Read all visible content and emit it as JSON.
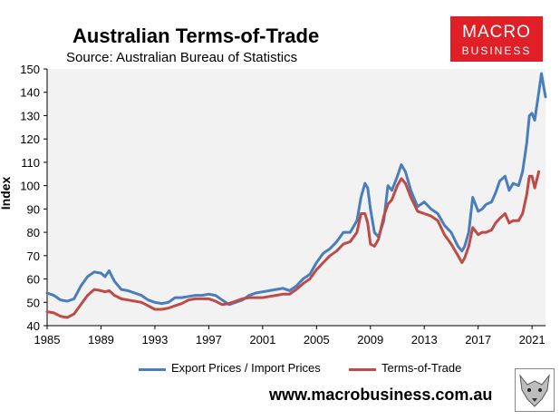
{
  "header": {
    "title": "Australian Terms-of-Trade",
    "subtitle": "Source: Australian Bureau of Statistics"
  },
  "logo": {
    "line1": "MACRO",
    "line2": "BUSINESS"
  },
  "footer": {
    "website": "www.macrobusiness.com.au"
  },
  "colors": {
    "export_import": "#4a7ebb",
    "terms_of_trade": "#be4b48",
    "plot_bg": "#f2f2f2",
    "logo_bg": "#e01f26"
  },
  "chart_data": {
    "type": "line",
    "ylabel": "Index",
    "xlabel": "",
    "xlim": [
      1985,
      2022
    ],
    "ylim": [
      40,
      150
    ],
    "yticks": [
      40,
      50,
      60,
      70,
      80,
      90,
      100,
      110,
      120,
      130,
      140,
      150
    ],
    "xticks": [
      1985,
      1989,
      1993,
      1997,
      2001,
      2005,
      2009,
      2013,
      2017,
      2021
    ],
    "grid": false,
    "legend": "bottom",
    "series": [
      {
        "name": "Export Prices / Import Prices",
        "color": "#4a7ebb",
        "points": [
          [
            1985,
            54
          ],
          [
            1985.5,
            53
          ],
          [
            1986,
            51
          ],
          [
            1986.5,
            50.5
          ],
          [
            1987,
            51.5
          ],
          [
            1987.5,
            57
          ],
          [
            1988,
            61
          ],
          [
            1988.5,
            63
          ],
          [
            1989,
            62.5
          ],
          [
            1989.3,
            61
          ],
          [
            1989.6,
            63.5
          ],
          [
            1990,
            59
          ],
          [
            1990.5,
            55.5
          ],
          [
            1991,
            55
          ],
          [
            1991.5,
            54
          ],
          [
            1992,
            53
          ],
          [
            1992.5,
            51
          ],
          [
            1993,
            50
          ],
          [
            1993.5,
            49.5
          ],
          [
            1994,
            50
          ],
          [
            1994.5,
            52
          ],
          [
            1995,
            52
          ],
          [
            1995.5,
            52.5
          ],
          [
            1996,
            53
          ],
          [
            1996.5,
            53
          ],
          [
            1997,
            53.5
          ],
          [
            1997.5,
            53
          ],
          [
            1998,
            51
          ],
          [
            1998.5,
            49
          ],
          [
            1999,
            50
          ],
          [
            1999.5,
            51
          ],
          [
            2000,
            53
          ],
          [
            2000.5,
            54
          ],
          [
            2001,
            54.5
          ],
          [
            2001.5,
            55
          ],
          [
            2002,
            55.5
          ],
          [
            2002.5,
            56
          ],
          [
            2003,
            55
          ],
          [
            2003.5,
            57
          ],
          [
            2004,
            60
          ],
          [
            2004.5,
            62
          ],
          [
            2005,
            67
          ],
          [
            2005.5,
            71
          ],
          [
            2006,
            73
          ],
          [
            2006.5,
            76
          ],
          [
            2007,
            80
          ],
          [
            2007.5,
            80
          ],
          [
            2008,
            85
          ],
          [
            2008.3,
            95
          ],
          [
            2008.6,
            101
          ],
          [
            2008.8,
            99
          ],
          [
            2009,
            90
          ],
          [
            2009.3,
            80
          ],
          [
            2009.6,
            78
          ],
          [
            2010,
            85
          ],
          [
            2010.3,
            100
          ],
          [
            2010.6,
            98
          ],
          [
            2011,
            104
          ],
          [
            2011.3,
            109
          ],
          [
            2011.6,
            106
          ],
          [
            2012,
            98
          ],
          [
            2012.5,
            91
          ],
          [
            2013,
            93
          ],
          [
            2013.5,
            90
          ],
          [
            2014,
            88
          ],
          [
            2014.5,
            83
          ],
          [
            2015,
            80
          ],
          [
            2015.5,
            74
          ],
          [
            2015.8,
            72
          ],
          [
            2016,
            74
          ],
          [
            2016.3,
            80
          ],
          [
            2016.6,
            95
          ],
          [
            2017,
            89
          ],
          [
            2017.3,
            90
          ],
          [
            2017.6,
            92
          ],
          [
            2018,
            93
          ],
          [
            2018.3,
            97
          ],
          [
            2018.6,
            102
          ],
          [
            2019,
            104
          ],
          [
            2019.3,
            98
          ],
          [
            2019.6,
            101
          ],
          [
            2020,
            100
          ],
          [
            2020.3,
            106
          ],
          [
            2020.6,
            118
          ],
          [
            2020.8,
            130
          ],
          [
            2021,
            131
          ],
          [
            2021.2,
            128
          ],
          [
            2021.5,
            140
          ],
          [
            2021.7,
            148
          ],
          [
            2022,
            138
          ]
        ]
      },
      {
        "name": "Terms-of-Trade",
        "color": "#be4b48",
        "points": [
          [
            1985,
            46
          ],
          [
            1985.5,
            45.5
          ],
          [
            1986,
            44
          ],
          [
            1986.5,
            43.5
          ],
          [
            1987,
            45
          ],
          [
            1987.5,
            49
          ],
          [
            1988,
            53
          ],
          [
            1988.5,
            55.5
          ],
          [
            1989,
            55
          ],
          [
            1989.3,
            54.5
          ],
          [
            1989.6,
            55
          ],
          [
            1990,
            53
          ],
          [
            1990.5,
            51.5
          ],
          [
            1991,
            51
          ],
          [
            1991.5,
            50.5
          ],
          [
            1992,
            50
          ],
          [
            1992.5,
            48.5
          ],
          [
            1993,
            47
          ],
          [
            1993.5,
            47
          ],
          [
            1994,
            47.5
          ],
          [
            1994.5,
            48.5
          ],
          [
            1995,
            49.5
          ],
          [
            1995.5,
            51
          ],
          [
            1996,
            51.5
          ],
          [
            1996.5,
            51.5
          ],
          [
            1997,
            51.5
          ],
          [
            1997.5,
            50.5
          ],
          [
            1998,
            49
          ],
          [
            1998.5,
            49.5
          ],
          [
            1999,
            50.5
          ],
          [
            1999.5,
            51.5
          ],
          [
            2000,
            52
          ],
          [
            2000.5,
            52
          ],
          [
            2001,
            52
          ],
          [
            2001.5,
            52.5
          ],
          [
            2002,
            53
          ],
          [
            2002.5,
            53.5
          ],
          [
            2003,
            53.5
          ],
          [
            2003.5,
            55.5
          ],
          [
            2004,
            58
          ],
          [
            2004.5,
            60
          ],
          [
            2005,
            64
          ],
          [
            2005.5,
            67
          ],
          [
            2006,
            70
          ],
          [
            2006.5,
            72
          ],
          [
            2007,
            75
          ],
          [
            2007.5,
            76
          ],
          [
            2008,
            80
          ],
          [
            2008.3,
            88
          ],
          [
            2008.6,
            88
          ],
          [
            2008.8,
            84
          ],
          [
            2009,
            75
          ],
          [
            2009.3,
            74
          ],
          [
            2009.6,
            77
          ],
          [
            2010,
            87
          ],
          [
            2010.3,
            92
          ],
          [
            2010.6,
            94
          ],
          [
            2011,
            100
          ],
          [
            2011.3,
            103
          ],
          [
            2011.6,
            101
          ],
          [
            2012,
            95
          ],
          [
            2012.5,
            89
          ],
          [
            2013,
            88
          ],
          [
            2013.5,
            87
          ],
          [
            2014,
            85
          ],
          [
            2014.5,
            79
          ],
          [
            2015,
            75
          ],
          [
            2015.5,
            70
          ],
          [
            2015.8,
            67
          ],
          [
            2016,
            69
          ],
          [
            2016.3,
            74
          ],
          [
            2016.6,
            82
          ],
          [
            2017,
            79
          ],
          [
            2017.3,
            80
          ],
          [
            2017.6,
            80
          ],
          [
            2018,
            81
          ],
          [
            2018.3,
            84
          ],
          [
            2018.6,
            86
          ],
          [
            2019,
            88
          ],
          [
            2019.3,
            84
          ],
          [
            2019.6,
            85
          ],
          [
            2020,
            85
          ],
          [
            2020.3,
            88
          ],
          [
            2020.6,
            96
          ],
          [
            2020.8,
            104
          ],
          [
            2021,
            104
          ],
          [
            2021.2,
            99
          ],
          [
            2021.5,
            106
          ]
        ]
      }
    ]
  }
}
